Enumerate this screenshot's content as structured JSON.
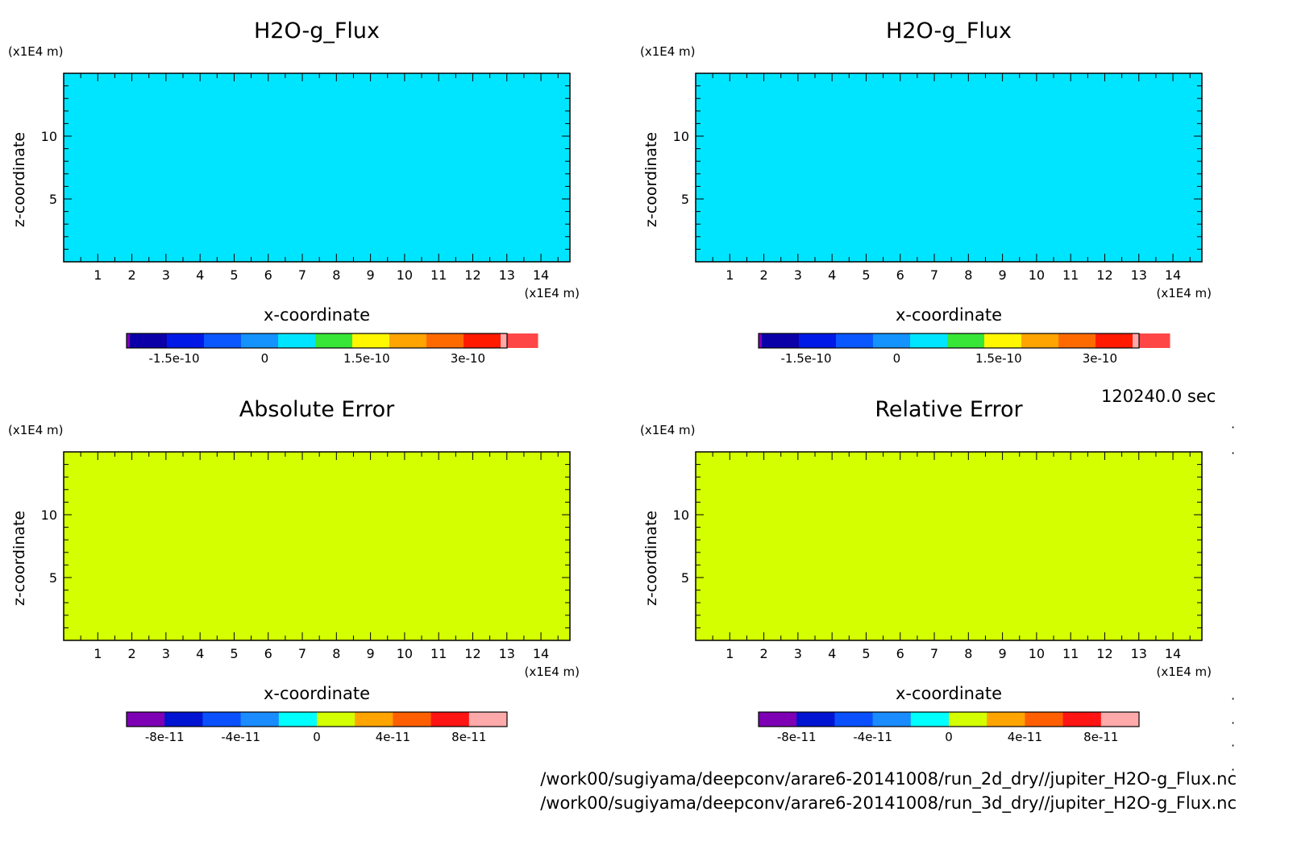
{
  "time_label": "120240.0 sec",
  "file_paths": [
    "/work00/sugiyama/deepconv/arare6-20141008/run_2d_dry//jupiter_H2O-g_Flux.nc",
    "/work00/sugiyama/deepconv/arare6-20141008/run_3d_dry//jupiter_H2O-g_Flux.nc"
  ],
  "colors": {
    "flux_fill": "#00e5ff",
    "error_fill": "#d4ff00",
    "flux_palette": [
      "#0b00a8",
      "#0019e6",
      "#0a57ff",
      "#1493ff",
      "#00e5ff",
      "#38e637",
      "#fff700",
      "#ffa400",
      "#ff6a00",
      "#ff1a00",
      "#ff4646",
      "#ffaaaa"
    ],
    "error_palette": [
      "#7d00b4",
      "#0014d2",
      "#0a50ff",
      "#1a8cff",
      "#00ffff",
      "#d4ff00",
      "#ffa400",
      "#ff5f00",
      "#ff1414",
      "#ffaaaa"
    ]
  },
  "chart_data": [
    {
      "type": "heatmap",
      "title": "H2O-g_Flux",
      "xlabel": "x-coordinate",
      "ylabel": "z-coordinate",
      "x_unit": "(x1E4 m)",
      "y_unit": "(x1E4 m)",
      "xlim": [
        0,
        14.85
      ],
      "ylim": [
        0,
        15
      ],
      "x_ticks": [
        1,
        2,
        3,
        4,
        5,
        6,
        7,
        8,
        9,
        10,
        11,
        12,
        13,
        14
      ],
      "y_ticks": [
        5,
        10
      ],
      "field_value": 0,
      "colorbar_ticks": [
        "-1.5e-10",
        "0",
        "1.5e-10",
        "3e-10"
      ]
    },
    {
      "type": "heatmap",
      "title": "H2O-g_Flux",
      "xlabel": "x-coordinate",
      "ylabel": "z-coordinate",
      "x_unit": "(x1E4 m)",
      "y_unit": "(x1E4 m)",
      "xlim": [
        0,
        14.85
      ],
      "ylim": [
        0,
        15
      ],
      "x_ticks": [
        1,
        2,
        3,
        4,
        5,
        6,
        7,
        8,
        9,
        10,
        11,
        12,
        13,
        14
      ],
      "y_ticks": [
        5,
        10
      ],
      "field_value": 0,
      "colorbar_ticks": [
        "-1.5e-10",
        "0",
        "1.5e-10",
        "3e-10"
      ]
    },
    {
      "type": "heatmap",
      "title": "Absolute Error",
      "xlabel": "x-coordinate",
      "ylabel": "z-coordinate",
      "x_unit": "(x1E4 m)",
      "y_unit": "(x1E4 m)",
      "xlim": [
        0,
        14.85
      ],
      "ylim": [
        0,
        15
      ],
      "x_ticks": [
        1,
        2,
        3,
        4,
        5,
        6,
        7,
        8,
        9,
        10,
        11,
        12,
        13,
        14
      ],
      "y_ticks": [
        5,
        10
      ],
      "field_value": 0,
      "colorbar_ticks": [
        "-8e-11",
        "-4e-11",
        "0",
        "4e-11",
        "8e-11"
      ]
    },
    {
      "type": "heatmap",
      "title": "Relative Error",
      "xlabel": "x-coordinate",
      "ylabel": "z-coordinate",
      "x_unit": "(x1E4 m)",
      "y_unit": "(x1E4 m)",
      "xlim": [
        0,
        14.85
      ],
      "ylim": [
        0,
        15
      ],
      "x_ticks": [
        1,
        2,
        3,
        4,
        5,
        6,
        7,
        8,
        9,
        10,
        11,
        12,
        13,
        14
      ],
      "y_ticks": [
        5,
        10
      ],
      "field_value": 0,
      "colorbar_ticks": [
        "-8e-11",
        "-4e-11",
        "0",
        "4e-11",
        "8e-11"
      ]
    }
  ]
}
